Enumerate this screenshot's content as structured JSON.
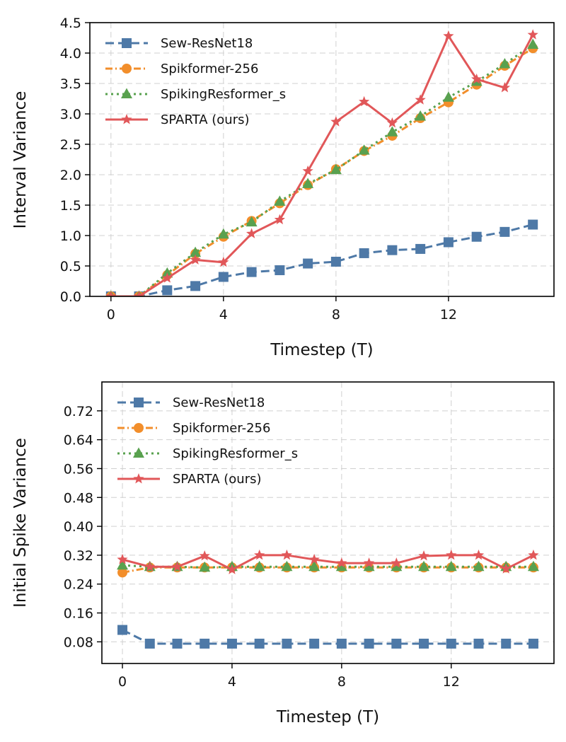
{
  "chart_data": [
    {
      "type": "line",
      "title": "",
      "xlabel": "Timestep (T)",
      "ylabel": "Interval Variance",
      "xlim": [
        -0.75,
        15.75
      ],
      "ylim": [
        0,
        4.5
      ],
      "xticks": [
        0,
        4,
        8,
        12
      ],
      "yticks": [
        0.0,
        0.5,
        1.0,
        1.5,
        2.0,
        2.5,
        3.0,
        3.5,
        4.0,
        4.5
      ],
      "ytick_labels": [
        "0.0",
        "0.5",
        "1.0",
        "1.5",
        "2.0",
        "2.5",
        "3.0",
        "3.5",
        "4.0",
        "4.5"
      ],
      "grid": true,
      "legend_position": "top-left",
      "x": [
        0,
        1,
        2,
        3,
        4,
        5,
        6,
        7,
        8,
        9,
        10,
        11,
        12,
        13,
        14,
        15
      ],
      "series": [
        {
          "name": "Sew-ResNet18",
          "color": "#4e79a7",
          "marker": "square",
          "dash": "dashed",
          "values": [
            0.0,
            0.0,
            0.1,
            0.17,
            0.32,
            0.4,
            0.43,
            0.54,
            0.57,
            0.71,
            0.76,
            0.78,
            0.89,
            0.98,
            1.06,
            1.18
          ]
        },
        {
          "name": "Spikformer-256",
          "color": "#f28e2b",
          "marker": "circle",
          "dash": "dashdot",
          "values": [
            0.0,
            0.0,
            0.35,
            0.7,
            0.98,
            1.24,
            1.53,
            1.83,
            2.09,
            2.39,
            2.64,
            2.93,
            3.19,
            3.48,
            3.79,
            4.08
          ]
        },
        {
          "name": "SpikingResformer_s",
          "color": "#59a14f",
          "marker": "triangle",
          "dash": "dotted",
          "values": [
            0.0,
            0.0,
            0.38,
            0.72,
            1.02,
            1.22,
            1.56,
            1.85,
            2.08,
            2.4,
            2.7,
            2.96,
            3.27,
            3.53,
            3.82,
            4.14
          ]
        },
        {
          "name": "SPARTA (ours)",
          "color": "#e15759",
          "marker": "star",
          "dash": "solid",
          "values": [
            0.0,
            0.0,
            0.3,
            0.6,
            0.56,
            1.03,
            1.26,
            2.06,
            2.87,
            3.2,
            2.85,
            3.23,
            4.28,
            3.57,
            3.43,
            4.3
          ]
        }
      ]
    },
    {
      "type": "line",
      "title": "",
      "xlabel": "Timestep (T)",
      "ylabel": "Initial Spike Variance",
      "xlim": [
        -0.75,
        15.75
      ],
      "ylim": [
        0.02,
        0.8
      ],
      "xticks": [
        0,
        4,
        8,
        12
      ],
      "yticks": [
        0.08,
        0.16,
        0.24,
        0.32,
        0.4,
        0.48,
        0.56,
        0.64,
        0.72
      ],
      "ytick_labels": [
        "0.08",
        "0.16",
        "0.24",
        "0.32",
        "0.40",
        "0.48",
        "0.56",
        "0.64",
        "0.72"
      ],
      "grid": true,
      "legend_position": "top-left",
      "x": [
        0,
        1,
        2,
        3,
        4,
        5,
        6,
        7,
        8,
        9,
        10,
        11,
        12,
        13,
        14,
        15
      ],
      "series": [
        {
          "name": "Sew-ResNet18",
          "color": "#4e79a7",
          "marker": "square",
          "dash": "dashed",
          "values": [
            0.113,
            0.075,
            0.075,
            0.075,
            0.075,
            0.075,
            0.075,
            0.075,
            0.075,
            0.075,
            0.075,
            0.075,
            0.075,
            0.075,
            0.075,
            0.075
          ]
        },
        {
          "name": "Spikformer-256",
          "color": "#f28e2b",
          "marker": "circle",
          "dash": "dashdot",
          "values": [
            0.272,
            0.286,
            0.286,
            0.286,
            0.286,
            0.286,
            0.286,
            0.286,
            0.286,
            0.286,
            0.286,
            0.286,
            0.286,
            0.286,
            0.286,
            0.286
          ]
        },
        {
          "name": "SpikingResformer_s",
          "color": "#59a14f",
          "marker": "triangle",
          "dash": "dotted",
          "values": [
            0.292,
            0.288,
            0.288,
            0.286,
            0.288,
            0.288,
            0.288,
            0.288,
            0.288,
            0.288,
            0.288,
            0.288,
            0.288,
            0.288,
            0.288,
            0.288
          ]
        },
        {
          "name": "SPARTA (ours)",
          "color": "#e15759",
          "marker": "star",
          "dash": "solid",
          "values": [
            0.308,
            0.288,
            0.288,
            0.318,
            0.28,
            0.32,
            0.32,
            0.308,
            0.298,
            0.298,
            0.298,
            0.318,
            0.32,
            0.32,
            0.282,
            0.32
          ]
        }
      ]
    }
  ]
}
